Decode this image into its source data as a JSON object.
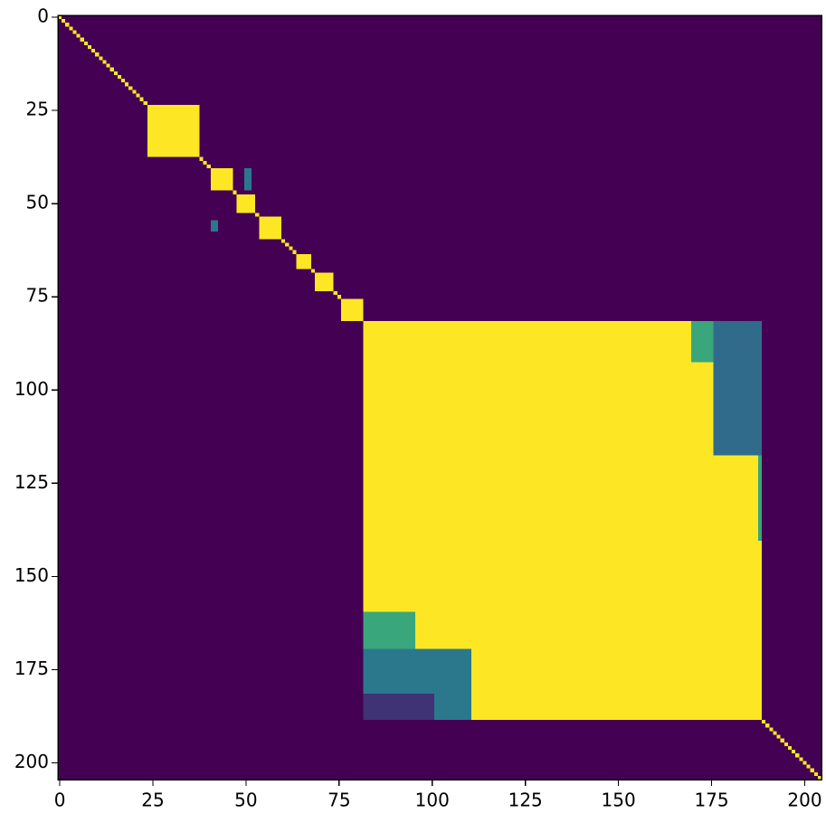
{
  "chart_data": {
    "type": "heatmap",
    "xlim": [
      -0.5,
      204.5
    ],
    "ylim": [
      204.5,
      -0.5
    ],
    "xticks": [
      0,
      25,
      50,
      75,
      100,
      125,
      150,
      175,
      200
    ],
    "yticks": [
      0,
      25,
      50,
      75,
      100,
      125,
      150,
      175,
      200
    ],
    "vlim": [
      0,
      1
    ],
    "colormap": [
      "#440154",
      "#3b528b",
      "#21918c",
      "#5ec962",
      "#fde725"
    ],
    "background_value": 0,
    "diagonal_value": 1,
    "blocks": [
      {
        "rows": [
          24,
          37
        ],
        "cols": [
          24,
          37
        ],
        "value": 1
      },
      {
        "rows": [
          41,
          46
        ],
        "cols": [
          41,
          46
        ],
        "value": 1
      },
      {
        "rows": [
          41,
          46
        ],
        "cols": [
          50,
          51
        ],
        "value": 0.4
      },
      {
        "rows": [
          48,
          52
        ],
        "cols": [
          48,
          52
        ],
        "value": 1
      },
      {
        "rows": [
          54,
          59
        ],
        "cols": [
          54,
          59
        ],
        "value": 1
      },
      {
        "rows": [
          55,
          57
        ],
        "cols": [
          41,
          42
        ],
        "value": 0.4
      },
      {
        "rows": [
          64,
          67
        ],
        "cols": [
          64,
          67
        ],
        "value": 1
      },
      {
        "rows": [
          69,
          73
        ],
        "cols": [
          69,
          73
        ],
        "value": 1
      },
      {
        "rows": [
          76,
          81
        ],
        "cols": [
          76,
          81
        ],
        "value": 1
      },
      {
        "rows": [
          82,
          188
        ],
        "cols": [
          82,
          188
        ],
        "value": 1
      },
      {
        "rows": [
          82,
          117
        ],
        "cols": [
          176,
          188
        ],
        "value": 0.35
      },
      {
        "rows": [
          82,
          92
        ],
        "cols": [
          170,
          175
        ],
        "value": 0.6
      },
      {
        "rows": [
          118,
          140
        ],
        "cols": [
          188,
          188
        ],
        "value": 0.6
      },
      {
        "rows": [
          160,
          169
        ],
        "cols": [
          82,
          95
        ],
        "value": 0.6
      },
      {
        "rows": [
          170,
          188
        ],
        "cols": [
          82,
          110
        ],
        "value": 0.4
      },
      {
        "rows": [
          182,
          188
        ],
        "cols": [
          82,
          100
        ],
        "value": 0.15
      }
    ]
  }
}
